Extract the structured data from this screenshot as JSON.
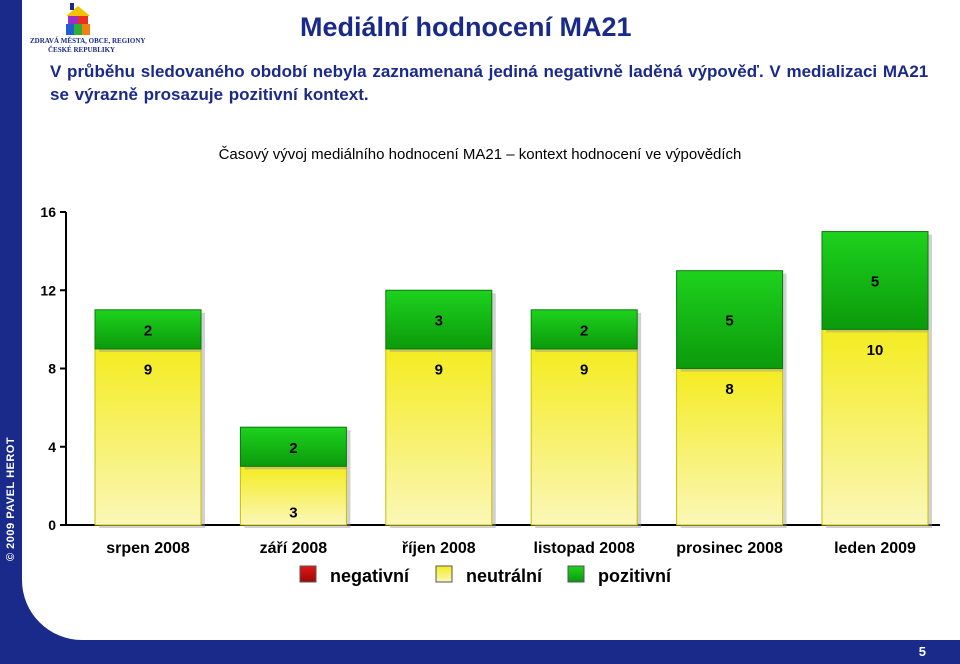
{
  "slide": {
    "title": "Mediální hodnocení MA21",
    "intro": "V průběhu sledovaného období nebyla zaznamenaná jediná negativně laděná výpověď. V medializaci MA21 se výrazně prosazuje pozitivní kontext.",
    "logo_line1": "ZDRAVÁ MĚSTA, OBCE, REGIONY",
    "logo_line2": "ČESKÉ REPUBLIKY",
    "copyright": "© 2009 PAVEL HEROT",
    "page_number": "5"
  },
  "chart_data": {
    "type": "bar",
    "stacked": true,
    "title": "Časový vývoj mediálního hodnocení MA21 – kontext hodnocení ve výpovědích",
    "categories": [
      "srpen 2008",
      "září 2008",
      "říjen 2008",
      "listopad 2008",
      "prosinec 2008",
      "leden 2009"
    ],
    "series": [
      {
        "name": "negativní",
        "values": [
          0,
          0,
          0,
          0,
          0,
          0
        ],
        "color": "#cc1010"
      },
      {
        "name": "neutrální",
        "values": [
          9,
          3,
          9,
          9,
          8,
          10
        ],
        "color": "#f2ee10"
      },
      {
        "name": "pozitivní",
        "values": [
          2,
          2,
          3,
          2,
          5,
          5
        ],
        "color": "#1ecc1e"
      }
    ],
    "yticks": [
      0,
      4,
      8,
      12,
      16
    ],
    "ylim": [
      0,
      16
    ],
    "legend": "bottom",
    "grid": false
  }
}
